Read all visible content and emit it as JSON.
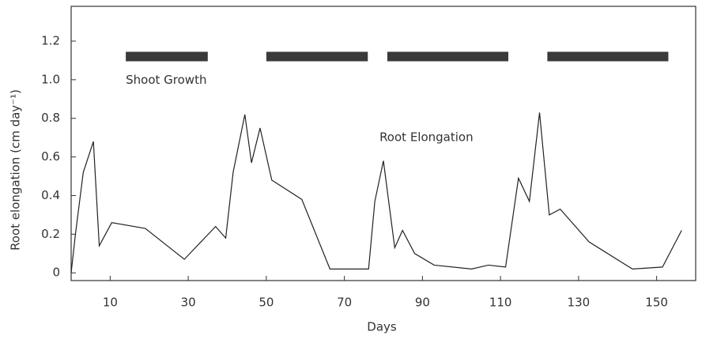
{
  "chart_data": {
    "type": "line",
    "x_label": "Days",
    "y_label": "Root elongation (cm day⁻¹)",
    "xlim": [
      0,
      160
    ],
    "ylim": [
      -0.04,
      1.38
    ],
    "xticks": [
      10,
      30,
      50,
      70,
      90,
      110,
      130,
      150
    ],
    "yticks": [
      0,
      0.2,
      0.4,
      0.6,
      0.8,
      {
        "value": 1,
        "label": "1.0"
      },
      1.2
    ],
    "color": "#222222",
    "x": [
      0,
      1.1,
      3.1,
      5.7,
      7.2,
      10.4,
      19,
      29,
      37,
      39.6,
      41.5,
      44.5,
      46.2,
      48.4,
      51.4,
      59.1,
      66.3,
      76.2,
      77.8,
      80,
      82.9,
      84.9,
      88,
      93,
      102.6,
      106.9,
      111.3,
      114.6,
      117.4,
      120,
      122.5,
      125.3,
      132.7,
      143.8,
      151.5,
      156.4
    ],
    "values": [
      0,
      0.2,
      0.52,
      0.68,
      0.14,
      0.26,
      0.23,
      0.07,
      0.24,
      0.18,
      0.52,
      0.82,
      0.57,
      0.75,
      0.48,
      0.38,
      0.02,
      0.02,
      0.37,
      0.58,
      0.13,
      0.22,
      0.1,
      0.04,
      0.02,
      0.04,
      0.03,
      0.49,
      0.37,
      0.83,
      0.3,
      0.33,
      0.16,
      0.02,
      0.03,
      0.22
    ],
    "line_label": {
      "text": "Root Elongation",
      "x": 79,
      "y": 0.7
    },
    "shoot_growth": {
      "text": "Shoot Growth",
      "y": 1.12,
      "color": "#3a3a3a",
      "periods": [
        [
          14,
          35
        ],
        [
          50,
          76
        ],
        [
          81,
          112
        ],
        [
          122,
          153
        ]
      ]
    }
  }
}
